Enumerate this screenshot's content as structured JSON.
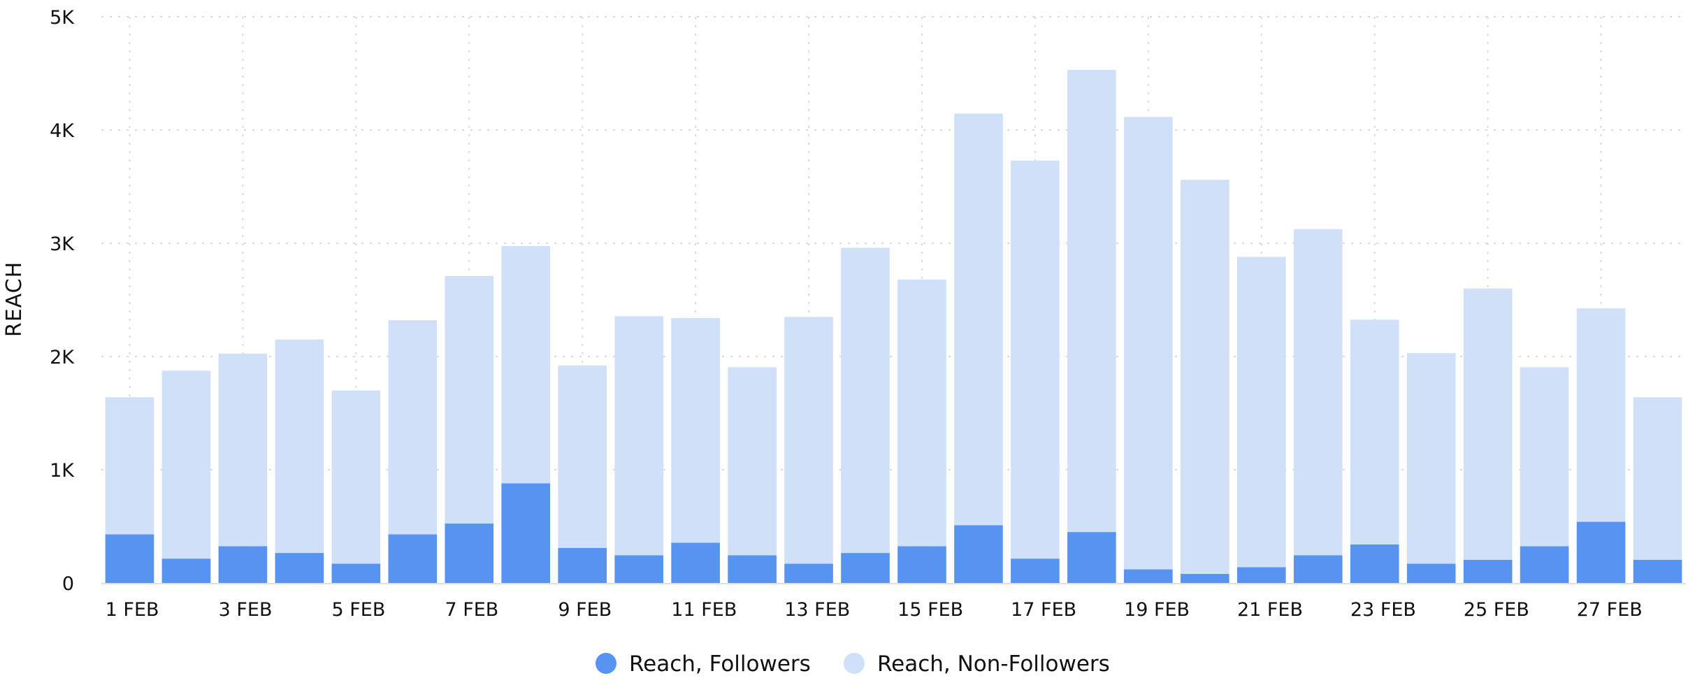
{
  "chart_data": {
    "type": "bar",
    "stacked": true,
    "ylabel": "REACH",
    "ylim": [
      0,
      5000
    ],
    "y_ticks": [
      0,
      1000,
      2000,
      3000,
      4000,
      5000
    ],
    "y_tick_labels": [
      "0",
      "1K",
      "2K",
      "3K",
      "4K",
      "5K"
    ],
    "grid": true,
    "legend_position": "bottom",
    "categories": [
      "1 FEB",
      "2 FEB",
      "3 FEB",
      "4 FEB",
      "5 FEB",
      "6 FEB",
      "7 FEB",
      "8 FEB",
      "9 FEB",
      "10 FEB",
      "11 FEB",
      "12 FEB",
      "13 FEB",
      "14 FEB",
      "15 FEB",
      "16 FEB",
      "17 FEB",
      "18 FEB",
      "19 FEB",
      "20 FEB",
      "21 FEB",
      "22 FEB",
      "23 FEB",
      "24 FEB",
      "25 FEB",
      "26 FEB",
      "27 FEB",
      "28 FEB"
    ],
    "x_tick_labels": [
      "1 FEB",
      "3 FEB",
      "5 FEB",
      "7 FEB",
      "9 FEB",
      "11 FEB",
      "13 FEB",
      "15 FEB",
      "17 FEB",
      "19 FEB",
      "21 FEB",
      "23 FEB",
      "25 FEB",
      "27 FEB"
    ],
    "series": [
      {
        "name": "Reach, Followers",
        "color": "#5794f2",
        "values": [
          430,
          215,
          325,
          265,
          170,
          430,
          525,
          880,
          310,
          245,
          355,
          245,
          170,
          265,
          325,
          510,
          215,
          450,
          120,
          80,
          140,
          245,
          340,
          170,
          205,
          325,
          540,
          205
        ]
      },
      {
        "name": "Reach, Non-Followers",
        "color": "#d0e0f9",
        "values": [
          1210,
          1660,
          1700,
          1885,
          1530,
          1890,
          2185,
          2095,
          1610,
          2110,
          1985,
          1660,
          2180,
          2695,
          2355,
          3635,
          3515,
          4080,
          3995,
          3480,
          2740,
          2880,
          1985,
          1860,
          2395,
          1580,
          1885,
          1435
        ]
      }
    ]
  }
}
